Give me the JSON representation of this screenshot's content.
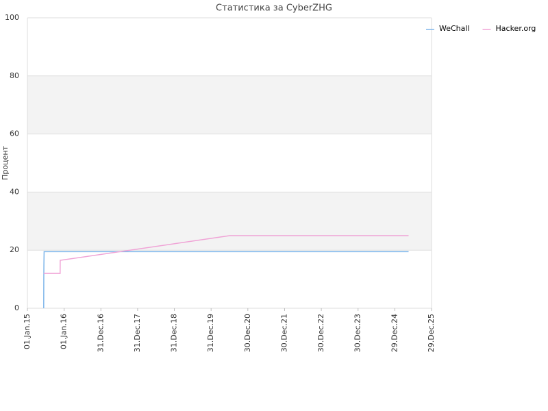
{
  "chart_data": {
    "type": "line",
    "title": "Статистика за CyberZHG",
    "ylabel": "Процент",
    "xlim": [
      "2015-01-01",
      "2025-12-29"
    ],
    "xticks": [
      {
        "value": "2015-01-01",
        "label": "01.Jan.15"
      },
      {
        "value": "2016-01-01",
        "label": "01.Jan.16"
      },
      {
        "value": "2016-12-31",
        "label": "31.Dec.16"
      },
      {
        "value": "2017-12-31",
        "label": "31.Dec.17"
      },
      {
        "value": "2018-12-31",
        "label": "31.Dec.18"
      },
      {
        "value": "2019-12-31",
        "label": "31.Dec.19"
      },
      {
        "value": "2020-12-30",
        "label": "30.Dec.20"
      },
      {
        "value": "2021-12-30",
        "label": "30.Dec.21"
      },
      {
        "value": "2022-12-30",
        "label": "30.Dec.22"
      },
      {
        "value": "2023-12-30",
        "label": "30.Dec.23"
      },
      {
        "value": "2024-12-29",
        "label": "29.Dec.24"
      },
      {
        "value": "2025-12-29",
        "label": "29.Dec.25"
      }
    ],
    "ylim": [
      0,
      100
    ],
    "yticks": [
      0,
      20,
      40,
      60,
      80,
      100
    ],
    "grid": true,
    "legend": "top-right",
    "series": [
      {
        "name": "WeChall",
        "color": "#7fb6ea",
        "x": [
          "2015-06-12",
          "2015-06-13",
          "2015-06-14",
          "2015-06-16",
          "2025-05-15"
        ],
        "values": [
          0,
          10,
          15,
          19.5,
          19.5
        ]
      },
      {
        "name": "Hacker.org",
        "color": "#f0a3d6",
        "x": [
          "2015-06-12",
          "2015-11-22",
          "2015-11-23",
          "2020-07-03",
          "2025-05-15"
        ],
        "values": [
          12,
          12,
          16.5,
          25,
          25
        ]
      }
    ]
  }
}
